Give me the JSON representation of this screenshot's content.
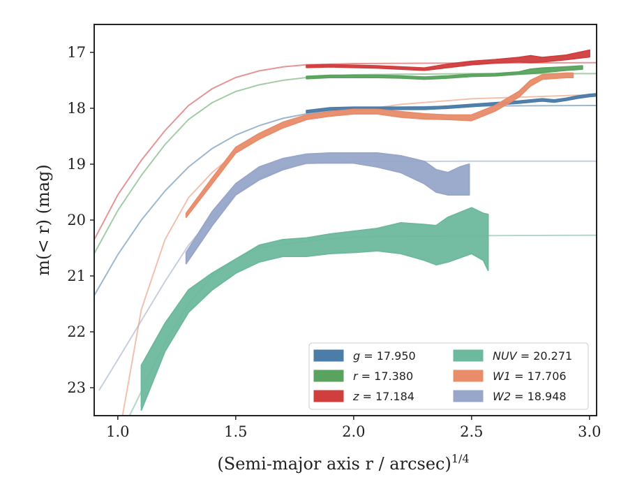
{
  "chart_data": {
    "type": "area",
    "xlabel": "(Semi-major axis r / arcsec)",
    "xlabel_superscript": "1/4",
    "ylabel": "m(< r) (mag)",
    "xlim": [
      0.9,
      3.03
    ],
    "ylim": [
      23.5,
      16.5
    ],
    "y_inverted": true,
    "grid": false,
    "legend_position": "lower-right",
    "x_ticks": [
      1.0,
      1.5,
      2.0,
      2.5,
      3.0
    ],
    "x_tick_labels": [
      "1.0",
      "1.5",
      "2.0",
      "2.5",
      "3.0"
    ],
    "y_ticks": [
      17,
      18,
      19,
      20,
      21,
      22,
      23
    ],
    "y_tick_labels": [
      "17",
      "18",
      "19",
      "20",
      "21",
      "22",
      "23"
    ],
    "series": [
      {
        "name": "g = 17.950",
        "var": "g",
        "value": "17.950",
        "color": "#4c7ca8",
        "total": 17.95,
        "model": [
          [
            0.9,
            21.35
          ],
          [
            1.0,
            20.62
          ],
          [
            1.1,
            20.0
          ],
          [
            1.2,
            19.48
          ],
          [
            1.3,
            19.05
          ],
          [
            1.4,
            18.72
          ],
          [
            1.5,
            18.48
          ],
          [
            1.6,
            18.31
          ],
          [
            1.7,
            18.18
          ],
          [
            1.8,
            18.1
          ],
          [
            1.9,
            18.05
          ],
          [
            2.0,
            18.02
          ],
          [
            2.2,
            17.98
          ],
          [
            2.5,
            17.96
          ],
          [
            3.0,
            17.95
          ],
          [
            3.03,
            17.95
          ]
        ],
        "band": [
          [
            1.8,
            18.08,
            18.04
          ],
          [
            1.9,
            18.03,
            17.99
          ],
          [
            2.0,
            18.02,
            17.98
          ],
          [
            2.1,
            18.02,
            17.98
          ],
          [
            2.2,
            18.02,
            17.98
          ],
          [
            2.3,
            18.02,
            17.98
          ],
          [
            2.4,
            18.0,
            17.96
          ],
          [
            2.5,
            17.97,
            17.93
          ],
          [
            2.6,
            17.94,
            17.9
          ],
          [
            2.7,
            17.91,
            17.87
          ],
          [
            2.8,
            17.87,
            17.83
          ],
          [
            2.85,
            17.89,
            17.85
          ],
          [
            2.9,
            17.86,
            17.82
          ],
          [
            2.95,
            17.82,
            17.78
          ],
          [
            3.0,
            17.79,
            17.75
          ],
          [
            3.03,
            17.78,
            17.74
          ]
        ]
      },
      {
        "name": "r = 17.380",
        "var": "r",
        "value": "17.380",
        "color": "#5aa35e",
        "total": 17.38,
        "model": [
          [
            0.9,
            20.6
          ],
          [
            1.0,
            19.83
          ],
          [
            1.1,
            19.2
          ],
          [
            1.2,
            18.65
          ],
          [
            1.3,
            18.2
          ],
          [
            1.4,
            17.9
          ],
          [
            1.5,
            17.7
          ],
          [
            1.6,
            17.58
          ],
          [
            1.7,
            17.5
          ],
          [
            1.8,
            17.45
          ],
          [
            1.9,
            17.42
          ],
          [
            2.0,
            17.4
          ],
          [
            2.2,
            17.39
          ],
          [
            2.5,
            17.38
          ],
          [
            3.0,
            17.38
          ],
          [
            3.03,
            17.38
          ]
        ],
        "band": [
          [
            1.8,
            17.47,
            17.43
          ],
          [
            1.9,
            17.45,
            17.41
          ],
          [
            2.0,
            17.45,
            17.41
          ],
          [
            2.1,
            17.45,
            17.41
          ],
          [
            2.2,
            17.46,
            17.42
          ],
          [
            2.3,
            17.48,
            17.44
          ],
          [
            2.4,
            17.46,
            17.42
          ],
          [
            2.5,
            17.43,
            17.39
          ],
          [
            2.6,
            17.42,
            17.38
          ],
          [
            2.7,
            17.39,
            17.35
          ],
          [
            2.75,
            17.38,
            17.3
          ],
          [
            2.8,
            17.36,
            17.28
          ],
          [
            2.9,
            17.32,
            17.26
          ],
          [
            2.97,
            17.3,
            17.24
          ]
        ]
      },
      {
        "name": "z = 17.184",
        "var": "z",
        "value": "17.184",
        "color": "#d03e3e",
        "total": 17.184,
        "model": [
          [
            0.9,
            20.35
          ],
          [
            1.0,
            19.55
          ],
          [
            1.1,
            18.93
          ],
          [
            1.2,
            18.4
          ],
          [
            1.3,
            17.95
          ],
          [
            1.4,
            17.65
          ],
          [
            1.5,
            17.45
          ],
          [
            1.6,
            17.33
          ],
          [
            1.7,
            17.26
          ],
          [
            1.8,
            17.22
          ],
          [
            2.0,
            17.2
          ],
          [
            2.5,
            17.19
          ],
          [
            3.0,
            17.184
          ],
          [
            3.03,
            17.184
          ]
        ],
        "band": [
          [
            1.8,
            17.27,
            17.23
          ],
          [
            1.9,
            17.26,
            17.22
          ],
          [
            2.0,
            17.27,
            17.23
          ],
          [
            2.1,
            17.28,
            17.24
          ],
          [
            2.2,
            17.3,
            17.26
          ],
          [
            2.3,
            17.32,
            17.28
          ],
          [
            2.4,
            17.27,
            17.21
          ],
          [
            2.5,
            17.22,
            17.16
          ],
          [
            2.6,
            17.19,
            17.13
          ],
          [
            2.7,
            17.17,
            17.09
          ],
          [
            2.75,
            17.18,
            17.06
          ],
          [
            2.8,
            17.17,
            17.09
          ],
          [
            2.9,
            17.13,
            17.05
          ],
          [
            3.0,
            17.08,
            16.96
          ]
        ]
      },
      {
        "name": "NUV = 20.271",
        "var": "NUV",
        "value": "20.271",
        "color": "#6db99d",
        "total": 20.271,
        "model": [
          [
            1.05,
            23.5
          ],
          [
            1.2,
            22.2
          ],
          [
            1.3,
            21.5
          ],
          [
            1.4,
            21.0
          ],
          [
            1.5,
            20.7
          ],
          [
            1.6,
            20.5
          ],
          [
            1.8,
            20.38
          ],
          [
            2.0,
            20.3
          ],
          [
            2.5,
            20.28
          ],
          [
            3.0,
            20.271
          ],
          [
            3.03,
            20.271
          ]
        ],
        "band": [
          [
            1.1,
            23.4,
            22.6
          ],
          [
            1.2,
            22.35,
            21.85
          ],
          [
            1.3,
            21.65,
            21.25
          ],
          [
            1.4,
            21.25,
            20.95
          ],
          [
            1.5,
            20.95,
            20.7
          ],
          [
            1.6,
            20.75,
            20.45
          ],
          [
            1.7,
            20.65,
            20.35
          ],
          [
            1.8,
            20.65,
            20.32
          ],
          [
            1.9,
            20.6,
            20.25
          ],
          [
            2.0,
            20.58,
            20.2
          ],
          [
            2.1,
            20.55,
            20.15
          ],
          [
            2.2,
            20.6,
            20.05
          ],
          [
            2.3,
            20.72,
            20.08
          ],
          [
            2.35,
            20.8,
            20.1
          ],
          [
            2.4,
            20.75,
            19.95
          ],
          [
            2.5,
            20.6,
            19.78
          ],
          [
            2.55,
            20.72,
            19.88
          ],
          [
            2.57,
            20.9,
            19.9
          ]
        ]
      },
      {
        "name": "W1 = 17.706",
        "var": "W1",
        "value": "17.706",
        "color": "#e88c6a",
        "total": 17.706,
        "model": [
          [
            1.02,
            23.5
          ],
          [
            1.1,
            21.6
          ],
          [
            1.2,
            20.35
          ],
          [
            1.3,
            19.6
          ],
          [
            1.4,
            19.15
          ],
          [
            1.5,
            18.8
          ],
          [
            1.6,
            18.55
          ],
          [
            1.7,
            18.35
          ],
          [
            1.8,
            18.2
          ],
          [
            2.0,
            18.05
          ],
          [
            2.2,
            17.93
          ],
          [
            2.5,
            17.83
          ],
          [
            3.0,
            17.76
          ],
          [
            3.03,
            17.75
          ]
        ],
        "band": [
          [
            1.29,
            19.95,
            19.88
          ],
          [
            1.4,
            19.35,
            19.25
          ],
          [
            1.5,
            18.8,
            18.7
          ],
          [
            1.6,
            18.55,
            18.45
          ],
          [
            1.7,
            18.35,
            18.25
          ],
          [
            1.8,
            18.2,
            18.12
          ],
          [
            1.9,
            18.14,
            18.06
          ],
          [
            2.0,
            18.1,
            18.02
          ],
          [
            2.1,
            18.1,
            18.02
          ],
          [
            2.2,
            18.16,
            18.06
          ],
          [
            2.3,
            18.19,
            18.1
          ],
          [
            2.4,
            18.2,
            18.12
          ],
          [
            2.5,
            18.22,
            18.12
          ],
          [
            2.6,
            18.05,
            17.95
          ],
          [
            2.7,
            17.8,
            17.7
          ],
          [
            2.75,
            17.6,
            17.5
          ],
          [
            2.8,
            17.48,
            17.4
          ],
          [
            2.9,
            17.45,
            17.37
          ],
          [
            2.93,
            17.45,
            17.37
          ]
        ]
      },
      {
        "name": "W2 = 18.948",
        "var": "W2",
        "value": "18.948",
        "color": "#97a6c9",
        "total": 18.948,
        "model": [
          [
            0.92,
            23.05
          ],
          [
            1.0,
            22.5
          ],
          [
            1.1,
            21.8
          ],
          [
            1.2,
            21.1
          ],
          [
            1.3,
            20.45
          ],
          [
            1.4,
            19.95
          ],
          [
            1.5,
            19.55
          ],
          [
            1.6,
            19.25
          ],
          [
            1.7,
            19.08
          ],
          [
            1.8,
            18.99
          ],
          [
            2.0,
            18.95
          ],
          [
            2.5,
            18.948
          ],
          [
            3.0,
            18.948
          ],
          [
            3.03,
            18.948
          ]
        ],
        "band": [
          [
            1.29,
            20.78,
            20.58
          ],
          [
            1.4,
            20.1,
            19.85
          ],
          [
            1.5,
            19.55,
            19.35
          ],
          [
            1.6,
            19.28,
            19.05
          ],
          [
            1.7,
            19.1,
            18.9
          ],
          [
            1.8,
            18.98,
            18.82
          ],
          [
            1.9,
            18.98,
            18.8
          ],
          [
            2.0,
            18.98,
            18.8
          ],
          [
            2.1,
            19.05,
            18.8
          ],
          [
            2.2,
            19.15,
            18.85
          ],
          [
            2.3,
            19.35,
            18.95
          ],
          [
            2.35,
            19.5,
            19.1
          ],
          [
            2.4,
            19.55,
            19.15
          ],
          [
            2.45,
            19.55,
            19.05
          ],
          [
            2.49,
            19.55,
            19.0
          ]
        ]
      }
    ]
  }
}
